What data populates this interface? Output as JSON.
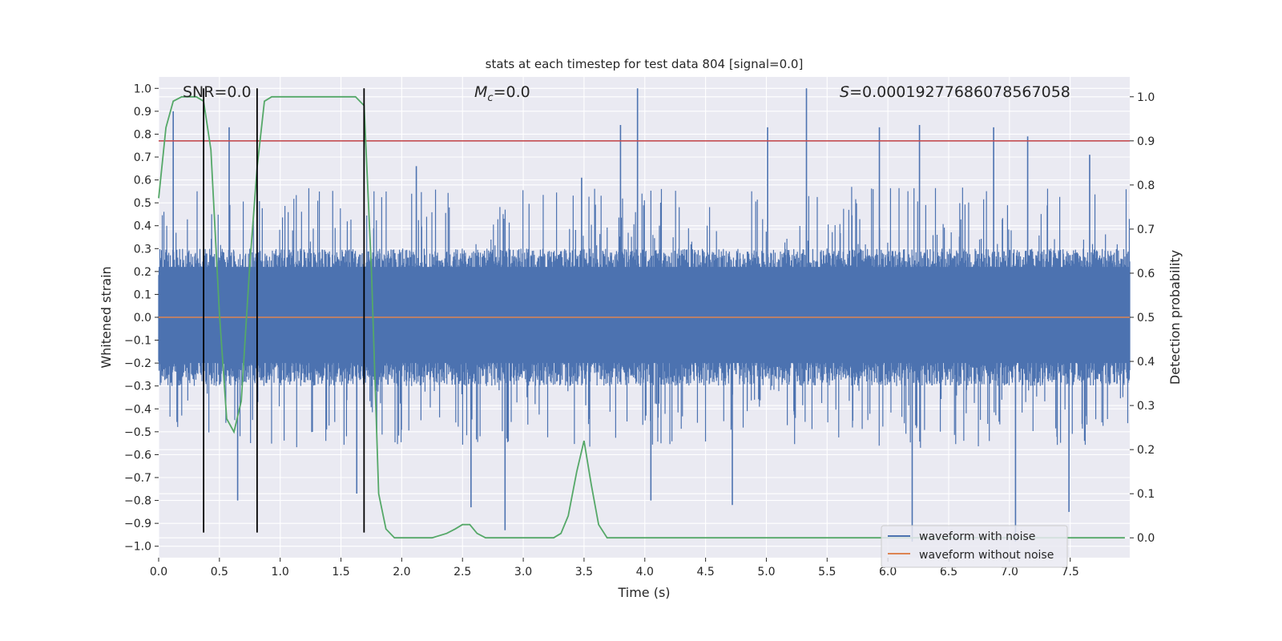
{
  "chart_data": {
    "type": "line",
    "title": "stats at each timestep for test data 804 [signal=0.0]",
    "xlabel": "Time (s)",
    "ylabel_left": "Whitened strain",
    "ylabel_right": "Detection probability",
    "xlim": [
      0.0,
      7.99
    ],
    "ylim_left": [
      -1.05,
      1.05
    ],
    "ylim_right": [
      -0.045,
      1.045
    ],
    "x_ticks": [
      0.0,
      0.5,
      1.0,
      1.5,
      2.0,
      2.5,
      3.0,
      3.5,
      4.0,
      4.5,
      5.0,
      5.5,
      6.0,
      6.5,
      7.0,
      7.5
    ],
    "x_tick_labels": [
      "0.0",
      "0.5",
      "1.0",
      "1.5",
      "2.0",
      "2.5",
      "3.0",
      "3.5",
      "4.0",
      "4.5",
      "5.0",
      "5.5",
      "6.0",
      "6.5",
      "7.0",
      "7.5"
    ],
    "y_left_ticks": [
      1.0,
      0.9,
      0.8,
      0.7,
      0.6,
      0.5,
      0.4,
      0.3,
      0.2,
      0.1,
      0.0,
      -0.1,
      -0.2,
      -0.3,
      -0.4,
      -0.5,
      -0.6,
      -0.7,
      -0.8,
      -0.9,
      -1.0
    ],
    "y_left_tick_labels": [
      "1.0",
      "0.9",
      "0.8",
      "0.7",
      "0.6",
      "0.5",
      "0.4",
      "0.3",
      "0.2",
      "0.1",
      "0.0",
      "−0.1",
      "−0.2",
      "−0.3",
      "−0.4",
      "−0.5",
      "−0.6",
      "−0.7",
      "−0.8",
      "−0.9",
      "−1.0"
    ],
    "y_right_ticks": [
      1.0,
      0.9,
      0.8,
      0.7,
      0.6,
      0.5,
      0.4,
      0.3,
      0.2,
      0.1,
      0.0
    ],
    "y_right_tick_labels": [
      "1.0",
      "0.9",
      "0.8",
      "0.7",
      "0.6",
      "0.5",
      "0.4",
      "0.3",
      "0.2",
      "0.1",
      "0.0"
    ],
    "annotations": {
      "snr": "SNR=0.0",
      "mc_symbol": "M",
      "mc_subscript": "c",
      "mc_value": "=0.0",
      "s_symbol": "S",
      "s_value": "=0.00019277686078567058"
    },
    "threshold": {
      "axis": "right",
      "value": 0.9,
      "color": "#c44e52"
    },
    "vertical_markers": [
      0.37,
      0.81,
      1.69
    ],
    "noise_envelope": {
      "description": "dense whitened-strain trace, mostly within ±0.3",
      "typical_upper": 0.3,
      "typical_lower": -0.3,
      "spikes": [
        [
          0.12,
          0.9
        ],
        [
          0.37,
          0.73
        ],
        [
          0.58,
          0.83
        ],
        [
          0.65,
          -0.8
        ],
        [
          0.81,
          0.7
        ],
        [
          1.63,
          -0.77
        ],
        [
          2.12,
          0.66
        ],
        [
          2.57,
          -0.83
        ],
        [
          2.85,
          -0.93
        ],
        [
          3.48,
          0.61
        ],
        [
          3.8,
          0.84
        ],
        [
          3.94,
          1.0
        ],
        [
          4.05,
          -0.8
        ],
        [
          4.72,
          -0.82
        ],
        [
          5.01,
          0.83
        ],
        [
          5.33,
          1.0
        ],
        [
          5.93,
          0.83
        ],
        [
          6.2,
          -0.98
        ],
        [
          6.26,
          0.84
        ],
        [
          6.87,
          0.83
        ],
        [
          7.05,
          -0.98
        ],
        [
          7.15,
          0.79
        ],
        [
          7.49,
          -0.85
        ],
        [
          7.66,
          0.71
        ]
      ]
    },
    "series": [
      {
        "name": "waveform with noise",
        "axis": "left",
        "color": "#4c72b0"
      },
      {
        "name": "waveform without noise",
        "axis": "left",
        "color": "#dd8452",
        "x": [
          0.0,
          7.99
        ],
        "y": [
          0.0,
          0.0
        ]
      },
      {
        "name": "detection probability",
        "axis": "right",
        "color": "#55a868",
        "x": [
          0.0,
          0.06,
          0.12,
          0.19,
          0.25,
          0.31,
          0.37,
          0.43,
          0.5,
          0.56,
          0.62,
          0.68,
          0.75,
          0.81,
          0.87,
          0.93,
          1.0,
          1.25,
          1.5,
          1.62,
          1.69,
          1.75,
          1.81,
          1.87,
          1.94,
          2.0,
          2.25,
          2.37,
          2.44,
          2.5,
          2.56,
          2.62,
          2.69,
          2.75,
          3.0,
          3.25,
          3.31,
          3.37,
          3.44,
          3.5,
          3.56,
          3.62,
          3.69,
          3.75,
          4.0,
          5.0,
          6.0,
          7.0,
          7.95
        ],
        "y": [
          0.77,
          0.93,
          0.99,
          1.0,
          1.0,
          1.0,
          0.99,
          0.88,
          0.51,
          0.27,
          0.24,
          0.31,
          0.62,
          0.84,
          0.99,
          1.0,
          1.0,
          1.0,
          1.0,
          1.0,
          0.98,
          0.61,
          0.1,
          0.02,
          0.0,
          0.0,
          0.0,
          0.01,
          0.02,
          0.03,
          0.03,
          0.01,
          0.0,
          0.0,
          0.0,
          0.0,
          0.01,
          0.05,
          0.15,
          0.22,
          0.12,
          0.03,
          0.0,
          0.0,
          0.0,
          0.0,
          0.0,
          0.0,
          0.0
        ]
      }
    ],
    "legend": {
      "position": "lower-right",
      "entries": [
        {
          "label": "waveform with noise",
          "color": "#4c72b0"
        },
        {
          "label": "waveform without noise",
          "color": "#dd8452"
        }
      ]
    }
  }
}
